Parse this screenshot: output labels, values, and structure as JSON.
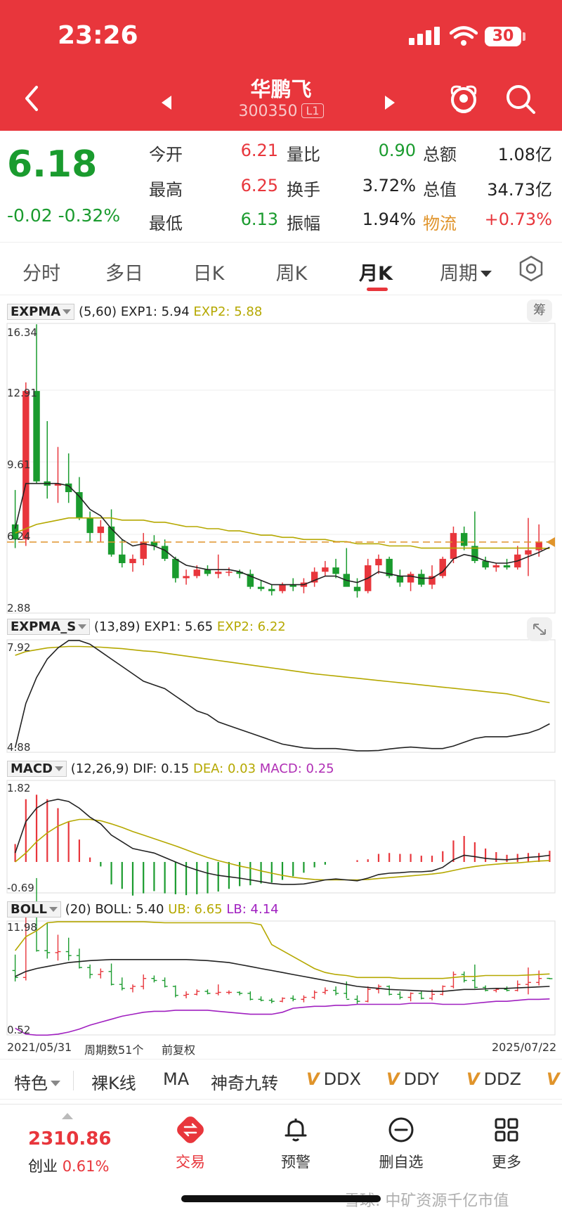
{
  "status_bar": {
    "time": "23:26",
    "battery": "30"
  },
  "header": {
    "stock_name": "华鹏飞",
    "stock_code": "300350",
    "level_badge": "L1"
  },
  "quote": {
    "price": "6.18",
    "change": "-0.02",
    "change_pct": "-0.32%",
    "stats": [
      {
        "label": "今开",
        "value": "6.21",
        "color": "#e8363c"
      },
      {
        "label": "量比",
        "value": "0.90",
        "color": "#1a9b2e"
      },
      {
        "label": "总额",
        "value": "1.08亿",
        "color": "#222222"
      },
      {
        "label": "最高",
        "value": "6.25",
        "color": "#e8363c"
      },
      {
        "label": "换手",
        "value": "3.72%",
        "color": "#222222"
      },
      {
        "label": "总值",
        "value": "34.73亿",
        "color": "#222222"
      },
      {
        "label": "最低",
        "value": "6.13",
        "color": "#1a9b2e"
      },
      {
        "label": "振幅",
        "value": "1.94%",
        "color": "#222222"
      },
      {
        "label": "物流",
        "value": "+0.73%",
        "color": "#e8363c"
      }
    ]
  },
  "tabs": [
    {
      "label": "分时"
    },
    {
      "label": "多日"
    },
    {
      "label": "日K"
    },
    {
      "label": "周K"
    },
    {
      "label": "月K"
    },
    {
      "label": "周期"
    }
  ],
  "indicators": {
    "expma": {
      "name": "EXPMA",
      "params": "(5,60)",
      "exp1": "EXP1: 5.94",
      "exp2": "EXP2: 5.88",
      "chip": "筹"
    },
    "expma_s": {
      "name": "EXPMA_S",
      "params": "(13,89)",
      "exp1": "EXP1: 5.65",
      "exp2": "EXP2: 6.22"
    },
    "macd": {
      "name": "MACD",
      "params": "(12,26,9)",
      "dif": "DIF: 0.15",
      "dea": "DEA: 0.03",
      "macd": "MACD: 0.25"
    },
    "boll": {
      "name": "BOLL",
      "params": "(20)",
      "boll": "BOLL: 5.40",
      "ub": "UB: 6.65",
      "lb": "LB: 4.14"
    }
  },
  "axis_labels": {
    "main_max": "16.34",
    "main_l2": "12.91",
    "main_l3": "9.61",
    "main_l4": "6.24",
    "main_min": "2.88",
    "expma_s_max": "7.92",
    "expma_s_min": "4.88",
    "macd_max": "1.82",
    "macd_min": "-0.69",
    "boll_max": "11.98",
    "boll_min": "0.52"
  },
  "footer": {
    "start_date": "2021/05/31",
    "period_count": "周期数51个",
    "adjust": "前复权",
    "end_date": "2025/07/22"
  },
  "toolstrip": {
    "items": [
      "特色",
      "裸K线",
      "MA",
      "神奇九转"
    ],
    "v_items": [
      "DDX",
      "DDY",
      "DDZ"
    ]
  },
  "bottom_nav": {
    "index_value": "2310.86",
    "index_name": "创业",
    "index_change": "0.61%",
    "items": [
      {
        "label": "交易"
      },
      {
        "label": "预警"
      },
      {
        "label": "删自选"
      },
      {
        "label": "更多"
      }
    ]
  },
  "watermark": "雪球: 中矿资源千亿市值",
  "colors": {
    "brand_red": "#e8363c",
    "down_green": "#1a9b2e",
    "exp2_olive": "#b5a800",
    "macd_magenta": "#b02eb5",
    "boll_purple": "#a020c0"
  },
  "chart_data": {
    "type": "candlestick",
    "period": "monthly",
    "ylim": [
      2.88,
      16.34
    ],
    "last_price_line": 6.18,
    "candles": [
      [
        7.0,
        8.6,
        5.9,
        6.3
      ],
      [
        6.3,
        13.6,
        6.0,
        13.2
      ],
      [
        13.2,
        16.3,
        8.9,
        9.0
      ],
      [
        9.0,
        11.8,
        8.2,
        8.8
      ],
      [
        8.8,
        10.6,
        8.0,
        8.9
      ],
      [
        8.9,
        10.3,
        8.0,
        8.5
      ],
      [
        8.5,
        9.2,
        7.2,
        7.3
      ],
      [
        7.3,
        7.6,
        6.2,
        6.6
      ],
      [
        6.6,
        7.2,
        6.2,
        6.9
      ],
      [
        6.9,
        7.7,
        5.5,
        5.6
      ],
      [
        5.6,
        6.3,
        5.0,
        5.2
      ],
      [
        5.2,
        5.6,
        4.8,
        5.4
      ],
      [
        5.4,
        6.6,
        5.1,
        6.2
      ],
      [
        6.2,
        6.5,
        5.8,
        6.0
      ],
      [
        6.0,
        6.3,
        5.3,
        5.4
      ],
      [
        5.4,
        5.5,
        4.3,
        4.5
      ],
      [
        4.5,
        4.9,
        4.2,
        4.6
      ],
      [
        4.6,
        5.1,
        4.5,
        4.9
      ],
      [
        4.9,
        5.1,
        4.6,
        4.7
      ],
      [
        4.7,
        5.6,
        4.5,
        4.8
      ],
      [
        4.8,
        5.0,
        4.6,
        4.8
      ],
      [
        4.8,
        4.9,
        4.5,
        4.7
      ],
      [
        4.7,
        4.9,
        4.0,
        4.1
      ],
      [
        4.1,
        4.4,
        3.9,
        4.0
      ],
      [
        4.0,
        4.2,
        3.7,
        3.9
      ],
      [
        3.9,
        4.3,
        3.8,
        4.2
      ],
      [
        4.2,
        4.5,
        3.9,
        4.1
      ],
      [
        4.1,
        4.5,
        3.8,
        4.3
      ],
      [
        4.3,
        5.0,
        4.1,
        4.8
      ],
      [
        4.8,
        5.3,
        4.6,
        5.0
      ],
      [
        5.0,
        5.4,
        4.5,
        4.7
      ],
      [
        4.7,
        5.9,
        4.2,
        4.1
      ],
      [
        4.1,
        4.5,
        3.6,
        3.9
      ],
      [
        3.9,
        5.4,
        3.8,
        5.1
      ],
      [
        5.1,
        5.6,
        4.7,
        5.4
      ],
      [
        5.4,
        5.5,
        4.5,
        4.6
      ],
      [
        4.6,
        4.9,
        4.1,
        4.3
      ],
      [
        4.3,
        4.8,
        3.9,
        4.7
      ],
      [
        4.7,
        4.9,
        4.1,
        4.2
      ],
      [
        4.2,
        5.1,
        4.0,
        4.6
      ],
      [
        4.6,
        5.5,
        4.5,
        5.4
      ],
      [
        5.4,
        6.9,
        5.2,
        6.6
      ],
      [
        6.6,
        6.9,
        5.8,
        6.0
      ],
      [
        6.0,
        7.6,
        5.2,
        5.3
      ],
      [
        5.3,
        5.5,
        4.9,
        5.0
      ],
      [
        5.0,
        5.2,
        4.8,
        5.1
      ],
      [
        5.1,
        5.4,
        4.9,
        5.0
      ],
      [
        5.0,
        6.0,
        4.9,
        5.6
      ],
      [
        5.6,
        7.3,
        4.6,
        5.8
      ],
      [
        5.8,
        7.0,
        5.5,
        6.2
      ],
      [
        6.21,
        6.25,
        6.13,
        6.18
      ]
    ],
    "exp1": [
      6.8,
      8.9,
      8.9,
      8.9,
      8.9,
      8.8,
      8.3,
      7.7,
      7.4,
      6.8,
      6.3,
      6.0,
      6.1,
      6.0,
      5.8,
      5.4,
      5.1,
      5.0,
      4.9,
      4.9,
      4.9,
      4.8,
      4.6,
      4.4,
      4.2,
      4.2,
      4.2,
      4.2,
      4.4,
      4.6,
      4.6,
      4.4,
      4.3,
      4.5,
      4.8,
      4.7,
      4.6,
      4.6,
      4.5,
      4.5,
      4.8,
      5.4,
      5.6,
      5.5,
      5.3,
      5.2,
      5.2,
      5.3,
      5.5,
      5.7,
      5.94
    ],
    "exp2": [
      6.6,
      6.8,
      7.0,
      7.1,
      7.2,
      7.3,
      7.3,
      7.3,
      7.3,
      7.3,
      7.2,
      7.2,
      7.2,
      7.1,
      7.1,
      7.0,
      6.9,
      6.9,
      6.8,
      6.8,
      6.7,
      6.7,
      6.6,
      6.5,
      6.5,
      6.4,
      6.4,
      6.3,
      6.3,
      6.3,
      6.2,
      6.2,
      6.1,
      6.1,
      6.1,
      6.0,
      6.0,
      6.0,
      5.9,
      5.9,
      5.9,
      5.9,
      5.9,
      5.9,
      5.9,
      5.9,
      5.9,
      5.9,
      5.9,
      5.9,
      5.88
    ],
    "expma_s": {
      "ylim": [
        4.88,
        7.92
      ],
      "exp1": [
        5.0,
        6.2,
        6.9,
        7.4,
        7.7,
        7.9,
        7.9,
        7.8,
        7.6,
        7.4,
        7.2,
        7.0,
        6.8,
        6.7,
        6.6,
        6.4,
        6.2,
        6.0,
        5.9,
        5.7,
        5.6,
        5.5,
        5.4,
        5.3,
        5.2,
        5.1,
        5.05,
        5.0,
        4.98,
        4.98,
        4.98,
        4.95,
        4.92,
        4.92,
        4.93,
        4.97,
        5.0,
        5.02,
        5.0,
        4.98,
        4.98,
        5.05,
        5.15,
        5.25,
        5.3,
        5.3,
        5.3,
        5.35,
        5.4,
        5.5,
        5.65
      ],
      "exp2": [
        7.5,
        7.6,
        7.65,
        7.7,
        7.72,
        7.74,
        7.74,
        7.73,
        7.72,
        7.7,
        7.68,
        7.65,
        7.62,
        7.6,
        7.56,
        7.52,
        7.48,
        7.44,
        7.4,
        7.36,
        7.32,
        7.28,
        7.24,
        7.2,
        7.16,
        7.12,
        7.08,
        7.04,
        7.0,
        6.97,
        6.94,
        6.91,
        6.88,
        6.85,
        6.82,
        6.79,
        6.76,
        6.73,
        6.7,
        6.67,
        6.64,
        6.61,
        6.58,
        6.55,
        6.52,
        6.49,
        6.46,
        6.4,
        6.33,
        6.27,
        6.22
      ]
    },
    "macd": {
      "ylim": [
        -0.69,
        1.82
      ],
      "dif": [
        0.2,
        0.9,
        1.2,
        1.35,
        1.4,
        1.35,
        1.2,
        1.0,
        0.85,
        0.6,
        0.45,
        0.3,
        0.25,
        0.2,
        0.1,
        0.0,
        -0.1,
        -0.18,
        -0.25,
        -0.3,
        -0.33,
        -0.36,
        -0.4,
        -0.44,
        -0.48,
        -0.5,
        -0.5,
        -0.49,
        -0.45,
        -0.4,
        -0.38,
        -0.4,
        -0.42,
        -0.36,
        -0.28,
        -0.25,
        -0.24,
        -0.22,
        -0.22,
        -0.2,
        -0.12,
        0.05,
        0.15,
        0.12,
        0.08,
        0.06,
        0.05,
        0.07,
        0.1,
        0.12,
        0.15
      ],
      "dea": [
        0.0,
        0.2,
        0.45,
        0.65,
        0.8,
        0.9,
        0.95,
        0.95,
        0.92,
        0.85,
        0.77,
        0.68,
        0.6,
        0.52,
        0.44,
        0.36,
        0.27,
        0.18,
        0.1,
        0.03,
        -0.03,
        -0.09,
        -0.14,
        -0.2,
        -0.25,
        -0.3,
        -0.34,
        -0.37,
        -0.39,
        -0.4,
        -0.4,
        -0.4,
        -0.4,
        -0.39,
        -0.37,
        -0.35,
        -0.33,
        -0.31,
        -0.29,
        -0.27,
        -0.24,
        -0.19,
        -0.14,
        -0.1,
        -0.07,
        -0.05,
        -0.03,
        -0.02,
        0.0,
        0.02,
        0.03
      ],
      "hist": [
        0.4,
        1.4,
        1.5,
        1.4,
        1.2,
        0.9,
        0.5,
        0.1,
        -0.1,
        -0.5,
        -0.6,
        -0.75,
        -0.7,
        -0.65,
        -0.7,
        -0.72,
        -0.74,
        -0.72,
        -0.7,
        -0.66,
        -0.6,
        -0.54,
        -0.52,
        -0.48,
        -0.46,
        -0.4,
        -0.32,
        -0.24,
        -0.12,
        -0.06,
        0.0,
        0.0,
        0.04,
        0.06,
        0.18,
        0.2,
        0.18,
        0.18,
        0.14,
        0.14,
        0.24,
        0.48,
        0.58,
        0.44,
        0.3,
        0.22,
        0.16,
        0.18,
        0.2,
        0.2,
        0.25
      ]
    },
    "boll": {
      "ylim": [
        0.52,
        11.98
      ],
      "mid": [
        6.4,
        6.9,
        7.2,
        7.4,
        7.6,
        7.8,
        7.9,
        8.0,
        8.05,
        8.1,
        8.1,
        8.1,
        8.1,
        8.1,
        8.1,
        8.1,
        8.1,
        8.05,
        8.0,
        7.9,
        7.8,
        7.6,
        7.4,
        7.2,
        7.0,
        6.8,
        6.6,
        6.4,
        6.2,
        6.0,
        5.8,
        5.6,
        5.4,
        5.3,
        5.2,
        5.1,
        5.05,
        5.0,
        4.95,
        4.9,
        4.9,
        5.0,
        5.1,
        5.1,
        5.15,
        5.2,
        5.2,
        5.25,
        5.3,
        5.35,
        5.4
      ],
      "ub": [
        9.0,
        10.4,
        11.0,
        11.8,
        11.9,
        11.9,
        11.9,
        11.9,
        11.9,
        11.9,
        11.9,
        11.9,
        11.9,
        11.85,
        11.8,
        11.8,
        11.8,
        11.8,
        11.8,
        11.8,
        11.8,
        11.8,
        11.8,
        11.6,
        9.6,
        9.0,
        8.4,
        7.8,
        7.2,
        6.8,
        6.6,
        6.5,
        6.3,
        6.3,
        6.3,
        6.3,
        6.2,
        6.2,
        6.2,
        6.2,
        6.2,
        6.3,
        6.4,
        6.4,
        6.5,
        6.5,
        6.5,
        6.5,
        6.55,
        6.6,
        6.65
      ],
      "lb": [
        1.2,
        0.6,
        0.5,
        0.5,
        0.6,
        0.8,
        1.1,
        1.5,
        1.8,
        2.1,
        2.4,
        2.6,
        2.8,
        2.9,
        2.9,
        3.0,
        3.0,
        3.0,
        3.0,
        2.9,
        2.8,
        2.7,
        2.6,
        2.6,
        2.6,
        2.8,
        3.2,
        3.3,
        3.4,
        3.4,
        3.5,
        3.5,
        3.6,
        3.6,
        3.6,
        3.6,
        3.6,
        3.7,
        3.7,
        3.7,
        3.6,
        3.6,
        3.6,
        3.7,
        3.8,
        3.9,
        3.9,
        4.0,
        4.1,
        4.1,
        4.14
      ]
    }
  }
}
